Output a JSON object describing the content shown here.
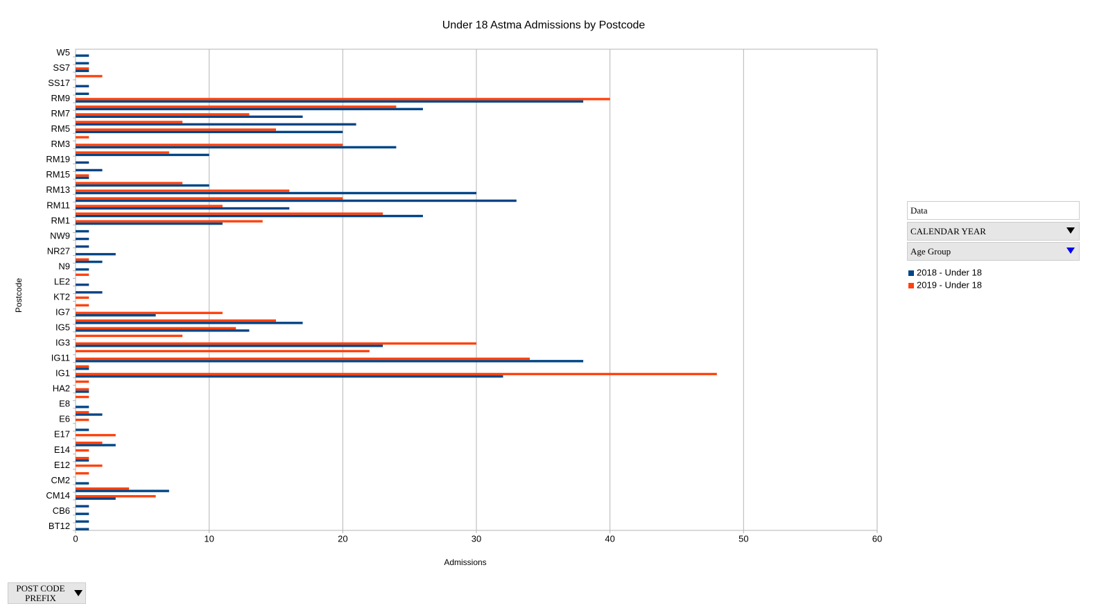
{
  "chart_data": {
    "type": "hbar",
    "title": "Under 18 Astma Admissions by Postcode",
    "x_label": "Admissions",
    "y_label": "Postcode",
    "categories": [
      "BT12",
      null,
      "CB6",
      null,
      "CM14",
      null,
      "CM2",
      null,
      "E12",
      null,
      "E14",
      null,
      "E17",
      null,
      "E6",
      null,
      "E8",
      null,
      "HA2",
      null,
      "IG1",
      null,
      "IG11",
      null,
      "IG3",
      null,
      "IG5",
      null,
      "IG7",
      null,
      "KT2",
      null,
      "LE2",
      null,
      "N9",
      null,
      "NR27",
      null,
      "NW9",
      null,
      "RM1",
      null,
      "RM11",
      null,
      "RM13",
      null,
      "RM15",
      null,
      "RM19",
      null,
      "RM3",
      null,
      "RM5",
      null,
      "RM7",
      null,
      "RM9",
      null,
      "SS17",
      null,
      "SS7",
      null,
      "W5"
    ],
    "series": [
      {
        "name": "2018 - Under 18",
        "color": "#004586",
        "values": [
          1,
          1,
          1,
          1,
          3,
          7,
          1,
          null,
          null,
          1,
          null,
          3,
          null,
          1,
          null,
          2,
          1,
          null,
          1,
          null,
          32,
          1,
          38,
          null,
          23,
          null,
          13,
          17,
          6,
          null,
          null,
          2,
          1,
          null,
          1,
          2,
          3,
          1,
          1,
          1,
          11,
          26,
          16,
          33,
          30,
          10,
          1,
          2,
          1,
          10,
          24,
          null,
          20,
          21,
          17,
          26,
          38,
          1,
          1,
          null,
          1,
          1,
          1
        ]
      },
      {
        "name": "2019 - Under 18",
        "color": "#ff420e",
        "values": [
          null,
          null,
          null,
          null,
          6,
          4,
          null,
          1,
          2,
          1,
          1,
          2,
          3,
          null,
          1,
          1,
          null,
          1,
          1,
          1,
          48,
          1,
          34,
          22,
          30,
          8,
          12,
          15,
          11,
          1,
          1,
          null,
          null,
          1,
          null,
          1,
          null,
          null,
          null,
          null,
          14,
          23,
          11,
          20,
          16,
          8,
          1,
          null,
          null,
          7,
          20,
          1,
          15,
          8,
          13,
          24,
          40,
          null,
          null,
          2,
          1,
          null,
          null
        ]
      }
    ],
    "xlim": [
      0,
      60
    ],
    "xticks": [
      0,
      10,
      20,
      30,
      40,
      50,
      60
    ],
    "grid": true
  },
  "pivot_fields": {
    "data_field": "Data",
    "column_fields": [
      "CALENDAR YEAR",
      "Age Group"
    ],
    "row_field": "POST CODE PREFIX"
  }
}
